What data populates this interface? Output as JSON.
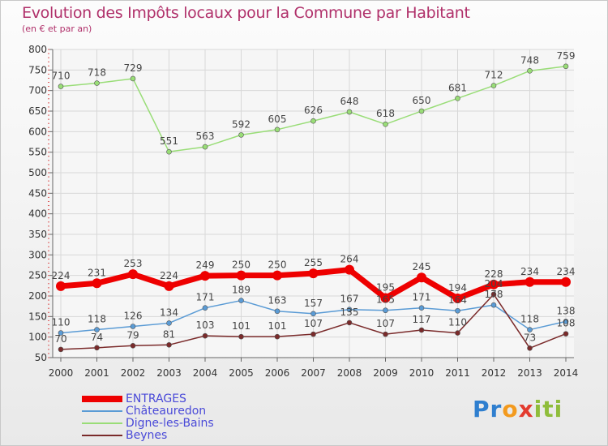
{
  "title": "Evolution des Impôts locaux pour la Commune par Habitant",
  "subtitle": "(en € et par an)",
  "brand": "Proxiti",
  "chart_data": {
    "type": "line",
    "x": [
      "2000",
      "2001",
      "2002",
      "2003",
      "2004",
      "2005",
      "2006",
      "2007",
      "2008",
      "2009",
      "2010",
      "2011",
      "2012",
      "2013",
      "2014"
    ],
    "ylim": [
      50,
      800
    ],
    "yticks": [
      50,
      100,
      150,
      200,
      250,
      300,
      350,
      400,
      450,
      500,
      550,
      600,
      650,
      700,
      750,
      800
    ],
    "grid": true,
    "legend_position": "bottom-left",
    "series": [
      {
        "name": "ENTRAGES",
        "color": "#ee0000",
        "values": [
          224,
          231,
          253,
          224,
          249,
          250,
          250,
          255,
          264,
          195,
          245,
          194,
          228,
          234,
          234
        ]
      },
      {
        "name": "Châteauredon",
        "color": "#5a9bd5",
        "values": [
          110,
          118,
          126,
          134,
          171,
          189,
          163,
          157,
          167,
          165,
          171,
          164,
          178,
          118,
          138
        ]
      },
      {
        "name": "Digne-les-Bains",
        "color": "#99dd77",
        "values": [
          710,
          718,
          729,
          551,
          563,
          592,
          605,
          626,
          648,
          618,
          650,
          681,
          712,
          748,
          759
        ]
      },
      {
        "name": "Beynes",
        "color": "#7a2a2a",
        "values": [
          70,
          74,
          79,
          81,
          103,
          101,
          101,
          107,
          135,
          107,
          117,
          110,
          204,
          73,
          108
        ]
      }
    ]
  }
}
